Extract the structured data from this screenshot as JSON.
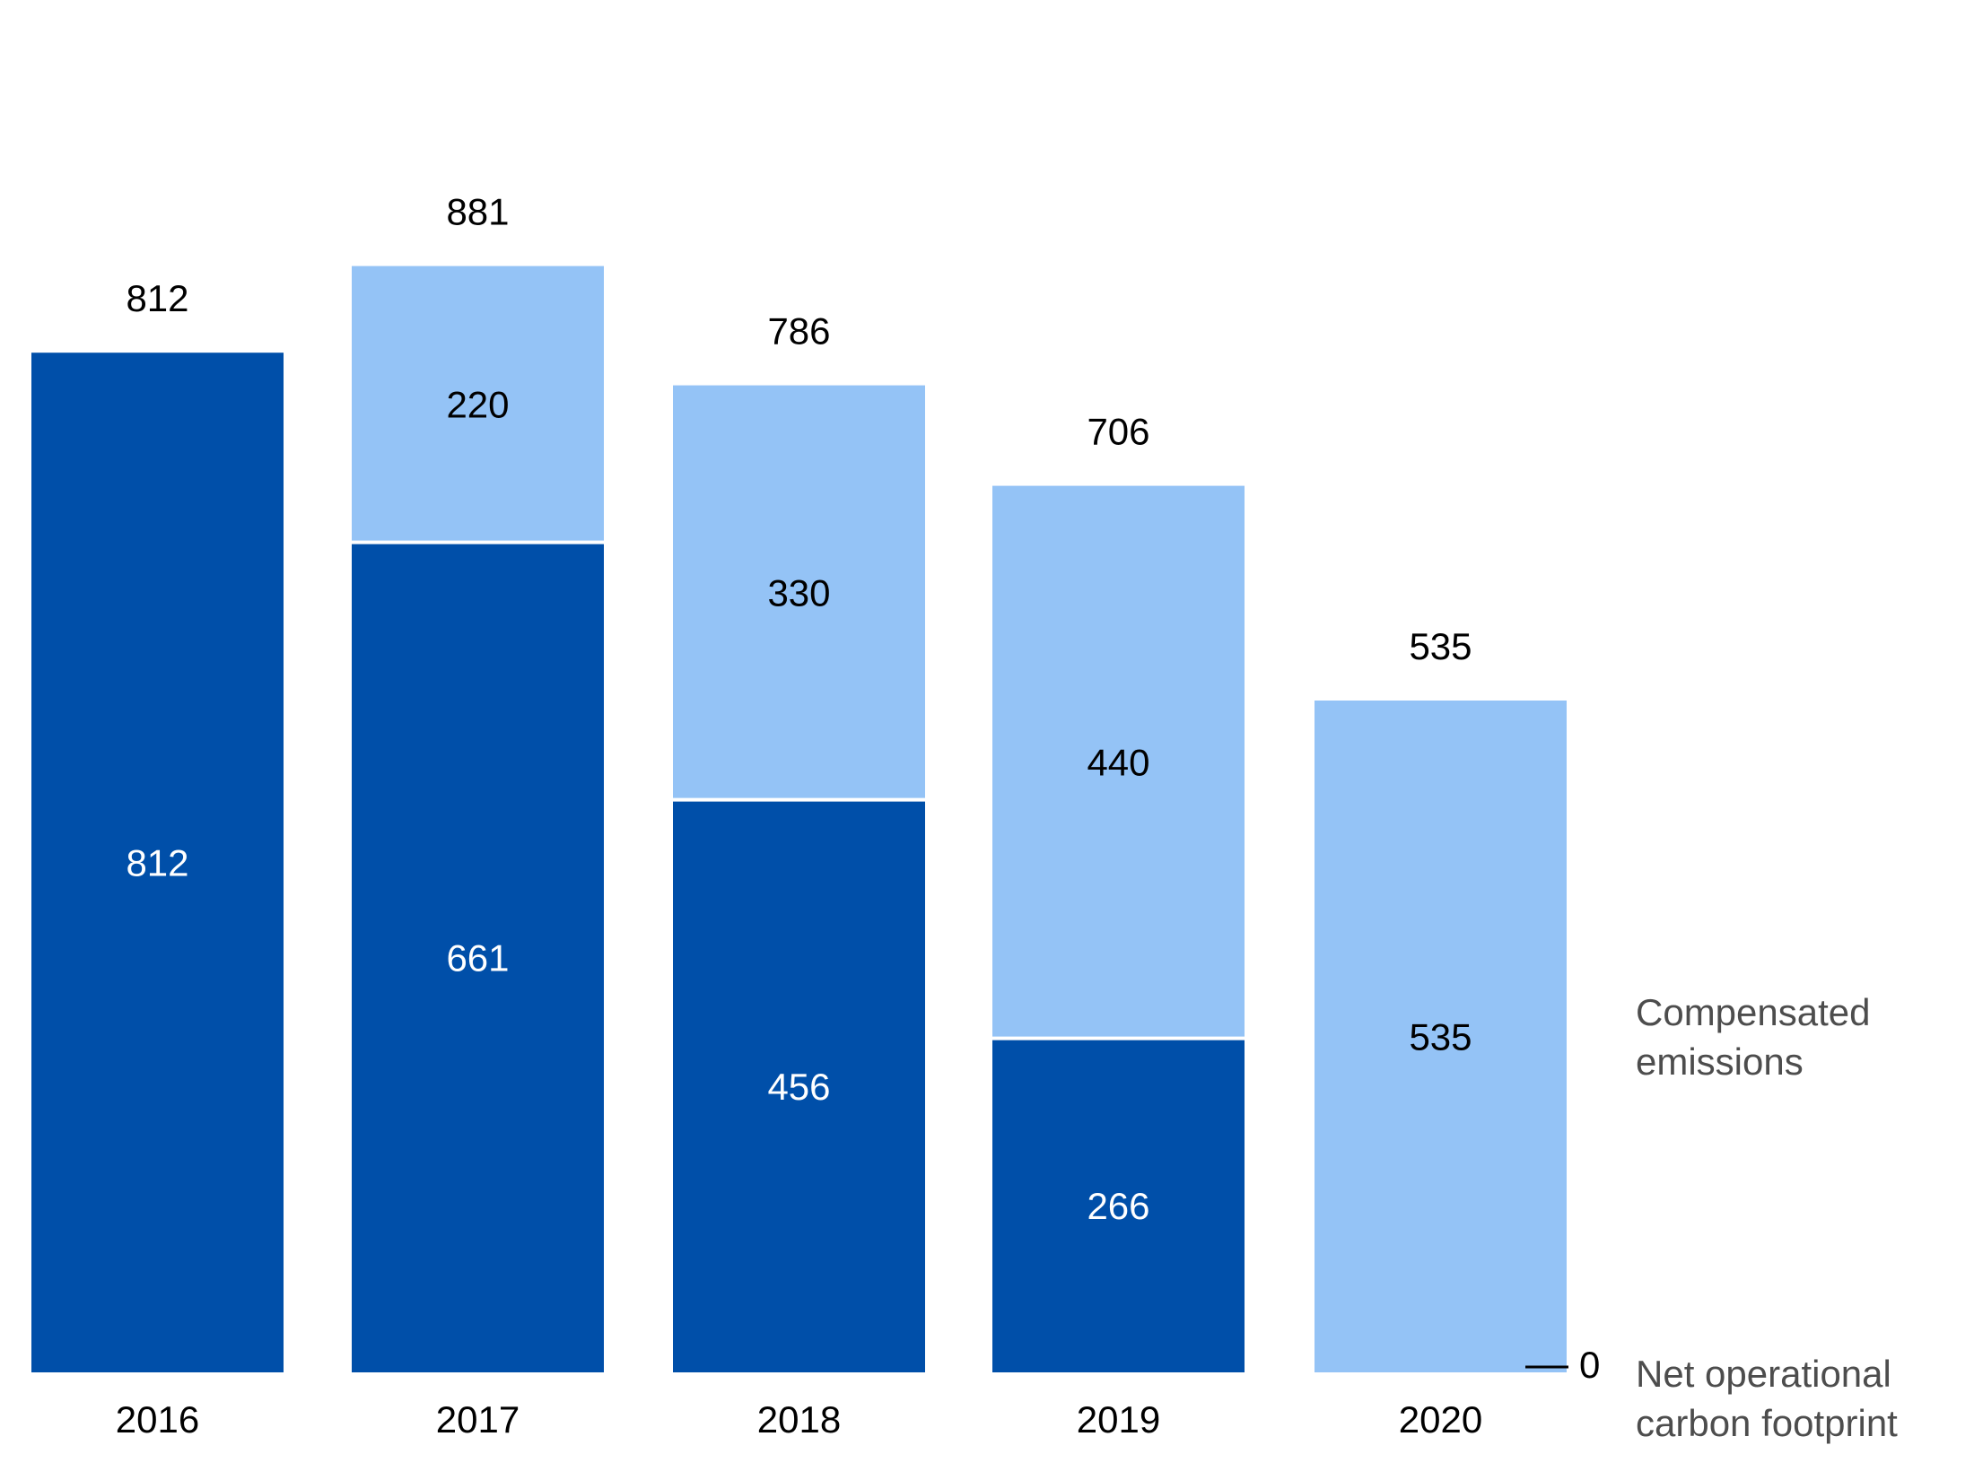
{
  "chart_data": {
    "type": "bar",
    "stacked": true,
    "title": "",
    "xlabel": "",
    "ylabel": "",
    "ylim": [
      0,
      881
    ],
    "grid": false,
    "categories": [
      "2016",
      "2017",
      "2018",
      "2019",
      "2020"
    ],
    "series": [
      {
        "name": "Net operational carbon footprint",
        "color": "#004fa9",
        "label_color": "#ffffff",
        "values": [
          812,
          661,
          456,
          266,
          0
        ]
      },
      {
        "name": "Compensated emissions",
        "color": "#94c3f6",
        "label_color": "#000000",
        "values": [
          0,
          220,
          330,
          440,
          535
        ]
      }
    ],
    "totals": [
      "812",
      "881",
      "786",
      "706",
      "535"
    ],
    "segment_labels": [
      [
        "812",
        "661",
        "456",
        "266",
        ""
      ],
      [
        "",
        "220",
        "330",
        "440",
        "535"
      ]
    ],
    "legend": {
      "placement": "right",
      "compensated": [
        "Compensated",
        "emissions"
      ],
      "net": [
        "Net operational",
        "carbon footprint"
      ]
    },
    "zero_marker_label": "0"
  }
}
